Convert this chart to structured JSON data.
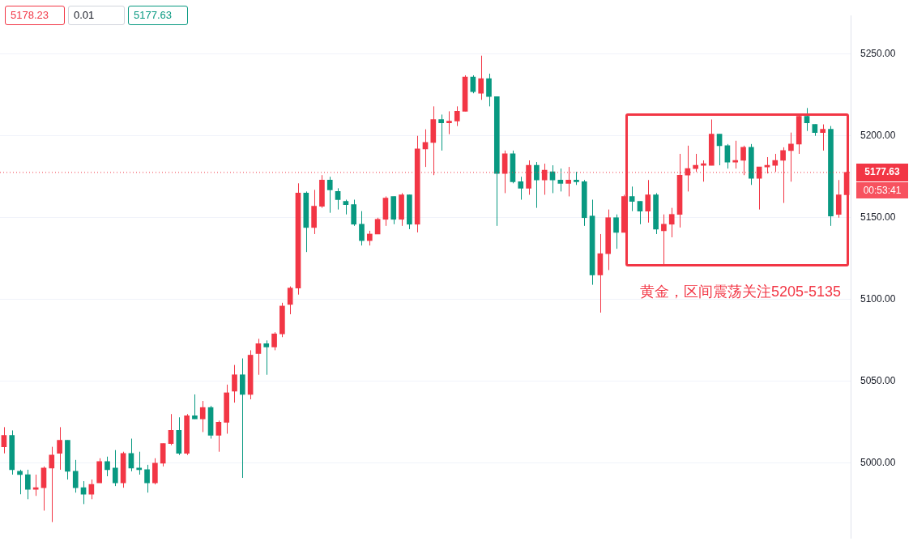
{
  "chart_data": {
    "type": "candlestick",
    "categories": [
      null,
      null,
      null,
      null,
      null,
      null,
      null,
      null,
      null,
      null,
      null,
      null,
      null,
      null,
      null,
      null,
      null,
      null,
      null,
      null,
      null,
      null,
      null,
      null,
      null,
      null,
      null,
      null,
      null,
      null,
      null,
      null,
      null,
      null,
      null,
      null,
      null,
      null,
      null,
      null,
      null,
      null,
      null,
      null,
      null,
      null,
      null,
      null,
      null,
      null,
      null,
      null,
      null,
      null,
      null,
      null,
      null,
      null,
      null,
      null,
      null,
      null,
      null,
      null,
      null,
      null,
      null,
      null,
      null,
      null,
      null,
      null,
      null,
      null,
      null,
      null,
      null,
      null,
      null,
      null,
      null,
      null,
      null,
      null,
      null,
      null,
      null,
      null,
      null,
      null,
      null,
      null,
      null,
      null,
      null,
      null,
      null,
      null,
      null,
      null,
      null,
      null,
      null,
      null,
      null,
      null,
      null
    ],
    "ohlc": [
      [
        5010,
        5022,
        5006,
        5017
      ],
      [
        5017,
        5020,
        4993,
        4996
      ],
      [
        4995,
        4996,
        4981,
        4993
      ],
      [
        4993,
        4996,
        4978,
        4984
      ],
      [
        4984,
        4993,
        4980,
        4985
      ],
      [
        4985,
        4998,
        4971,
        4997
      ],
      [
        4997,
        5010,
        4964,
        5005
      ],
      [
        5006,
        5022,
        4996,
        5014
      ],
      [
        5014,
        5014,
        4990,
        4995
      ],
      [
        4995,
        5002,
        4982,
        4985
      ],
      [
        4985,
        4989,
        4975,
        4981
      ],
      [
        4981,
        4990,
        4978,
        4987
      ],
      [
        4988,
        5003,
        4988,
        5001
      ],
      [
        5001,
        5004,
        4992,
        4996
      ],
      [
        4997,
        5008,
        4986,
        4988
      ],
      [
        4988,
        5007,
        4985,
        5006
      ],
      [
        5006,
        5015,
        4995,
        4997
      ],
      [
        4997,
        5007,
        4993,
        4996
      ],
      [
        4996,
        4999,
        4982,
        4988
      ],
      [
        4988,
        5003,
        4987,
        5000
      ],
      [
        5000,
        5012,
        4998,
        5012
      ],
      [
        5012,
        5030,
        5011,
        5020
      ],
      [
        5020,
        5028,
        5005,
        5006
      ],
      [
        5006,
        5030,
        5005,
        5029
      ],
      [
        5029,
        5042,
        5027,
        5027
      ],
      [
        5027,
        5038,
        5019,
        5034
      ],
      [
        5034,
        5035,
        5015,
        5017
      ],
      [
        5017,
        5026,
        5007,
        5025
      ],
      [
        5025,
        5048,
        5018,
        5043
      ],
      [
        5044,
        5060,
        5037,
        5054
      ],
      [
        5054,
        5064,
        4991,
        5042
      ],
      [
        5042,
        5069,
        5039,
        5066
      ],
      [
        5067,
        5076,
        5054,
        5073
      ],
      [
        5073,
        5075,
        5054,
        5071
      ],
      [
        5071,
        5080,
        5069,
        5079
      ],
      [
        5079,
        5098,
        5077,
        5096
      ],
      [
        5097,
        5108,
        5091,
        5107
      ],
      [
        5107,
        5171,
        5103,
        5165
      ],
      [
        5165,
        5166,
        5129,
        5144
      ],
      [
        5144,
        5167,
        5140,
        5157
      ],
      [
        5157,
        5176,
        5156,
        5173
      ],
      [
        5173,
        5175,
        5153,
        5167
      ],
      [
        5166,
        5168,
        5155,
        5161
      ],
      [
        5160,
        5161,
        5152,
        5158
      ],
      [
        5158,
        5161,
        5145,
        5146
      ],
      [
        5146,
        5154,
        5133,
        5136
      ],
      [
        5136,
        5142,
        5133,
        5140
      ],
      [
        5140,
        5150,
        5140,
        5149
      ],
      [
        5149,
        5163,
        5145,
        5162
      ],
      [
        5163,
        5163,
        5146,
        5149
      ],
      [
        5149,
        5165,
        5145,
        5164
      ],
      [
        5164,
        5164,
        5143,
        5146
      ],
      [
        5146,
        5200,
        5141,
        5192
      ],
      [
        5192,
        5204,
        5181,
        5196
      ],
      [
        5196,
        5218,
        5176,
        5210
      ],
      [
        5210,
        5213,
        5191,
        5208
      ],
      [
        5208,
        5215,
        5201,
        5209
      ],
      [
        5209,
        5218,
        5206,
        5215
      ],
      [
        5215,
        5237,
        5215,
        5236
      ],
      [
        5236,
        5237,
        5226,
        5227
      ],
      [
        5226,
        5249,
        5222,
        5235
      ],
      [
        5235,
        5238,
        5218,
        5224
      ],
      [
        5224,
        5224,
        5145,
        5177
      ],
      [
        5177,
        5191,
        5165,
        5189
      ],
      [
        5189,
        5191,
        5171,
        5172
      ],
      [
        5172,
        5175,
        5161,
        5168
      ],
      [
        5168,
        5185,
        5164,
        5182
      ],
      [
        5182,
        5184,
        5156,
        5173
      ],
      [
        5173,
        5183,
        5164,
        5179
      ],
      [
        5178,
        5182,
        5165,
        5173
      ],
      [
        5173,
        5180,
        5166,
        5171
      ],
      [
        5171,
        5181,
        5163,
        5173
      ],
      [
        5173,
        5178,
        5170,
        5172
      ],
      [
        5172,
        5173,
        5145,
        5150
      ],
      [
        5151,
        5161,
        5109,
        5115
      ],
      [
        5115,
        5140,
        5092,
        5128
      ],
      [
        5128,
        5155,
        5118,
        5150
      ],
      [
        5150,
        5152,
        5131,
        5141
      ],
      [
        5141,
        5164,
        5141,
        5163
      ],
      [
        5163,
        5169,
        5154,
        5160
      ],
      [
        5160,
        5160,
        5146,
        5154
      ],
      [
        5154,
        5173,
        5147,
        5164
      ],
      [
        5164,
        5165,
        5140,
        5143
      ],
      [
        5142,
        5152,
        5121,
        5146
      ],
      [
        5146,
        5156,
        5138,
        5152
      ],
      [
        5152,
        5189,
        5144,
        5176
      ],
      [
        5176,
        5194,
        5166,
        5180
      ],
      [
        5180,
        5189,
        5178,
        5182
      ],
      [
        5182,
        5185,
        5172,
        5183
      ],
      [
        5182,
        5210,
        5182,
        5201
      ],
      [
        5201,
        5201,
        5182,
        5194
      ],
      [
        5194,
        5195,
        5180,
        5184
      ],
      [
        5184,
        5197,
        5180,
        5185
      ],
      [
        5185,
        5194,
        5176,
        5193
      ],
      [
        5193,
        5195,
        5170,
        5174
      ],
      [
        5174,
        5181,
        5155,
        5181
      ],
      [
        5181,
        5187,
        5177,
        5182
      ],
      [
        5182,
        5189,
        5178,
        5185
      ],
      [
        5185,
        5193,
        5159,
        5191
      ],
      [
        5191,
        5202,
        5172,
        5195
      ],
      [
        5195,
        5213,
        5189,
        5212
      ],
      [
        5212,
        5217,
        5203,
        5208
      ],
      [
        5207,
        5207,
        5200,
        5202
      ],
      [
        5202,
        5207,
        5191,
        5204
      ],
      [
        5204,
        5206,
        5145,
        5151
      ],
      [
        5152,
        5173,
        5150,
        5164
      ],
      [
        5164,
        5179,
        5164,
        5177.63
      ]
    ],
    "colors": [
      "#f23645",
      "#089981",
      "#089981",
      "#089981",
      "#f23645",
      "#f23645",
      "#f23645",
      "#f23645",
      "#089981",
      "#089981",
      "#089981",
      "#f23645",
      "#f23645",
      "#089981",
      "#089981",
      "#f23645",
      "#089981",
      "#089981",
      "#089981",
      "#f23645",
      "#f23645",
      "#f23645",
      "#089981",
      "#f23645",
      "#089981",
      "#f23645",
      "#089981",
      "#f23645",
      "#f23645",
      "#f23645",
      "#089981",
      "#f23645",
      "#f23645",
      "#089981",
      "#f23645",
      "#f23645",
      "#f23645",
      "#f23645",
      "#089981",
      "#f23645",
      "#f23645",
      "#089981",
      "#089981",
      "#089981",
      "#089981",
      "#089981",
      "#f23645",
      "#f23645",
      "#f23645",
      "#089981",
      "#f23645",
      "#089981",
      "#f23645",
      "#f23645",
      "#f23645",
      "#089981",
      "#f23645",
      "#f23645",
      "#f23645",
      "#089981",
      "#f23645",
      "#089981",
      "#089981",
      "#f23645",
      "#089981",
      "#089981",
      "#f23645",
      "#089981",
      "#f23645",
      "#089981",
      "#089981",
      "#f23645",
      "#089981",
      "#089981",
      "#089981",
      "#f23645",
      "#f23645",
      "#089981",
      "#f23645",
      "#089981",
      "#089981",
      "#f23645",
      "#089981",
      "#f23645",
      "#f23645",
      "#f23645",
      "#f23645",
      "#f23645",
      "#f23645",
      "#f23645",
      "#089981",
      "#089981",
      "#f23645",
      "#f23645",
      "#089981",
      "#f23645",
      "#f23645",
      "#f23645",
      "#f23645",
      "#f23645",
      "#f23645",
      "#089981",
      "#089981",
      "#f23645",
      "#089981",
      "#f23645",
      "#f23645"
    ],
    "ylim": [
      4954,
      5273.5
    ],
    "yticks": [
      {
        "value": 5000,
        "label": "5000.00"
      },
      {
        "value": 5050,
        "label": "5050.00"
      },
      {
        "value": 5100,
        "label": "5100.00"
      },
      {
        "value": 5150,
        "label": "5150.00"
      },
      {
        "value": 5200,
        "label": "5200.00"
      },
      {
        "value": 5250,
        "label": "5250.00"
      }
    ],
    "ref_lines": [
      {
        "axis": "y",
        "value": 5177.63,
        "label": "5177.63",
        "color": "#f23645",
        "line_style": "dotted"
      }
    ],
    "annotations": [
      "5178.23",
      "0.01",
      "5177.63",
      "00:53:41",
      "黄金，区间震荡关注5205-5135"
    ],
    "grid": "y",
    "tick_labels": "y",
    "legend": false
  }
}
